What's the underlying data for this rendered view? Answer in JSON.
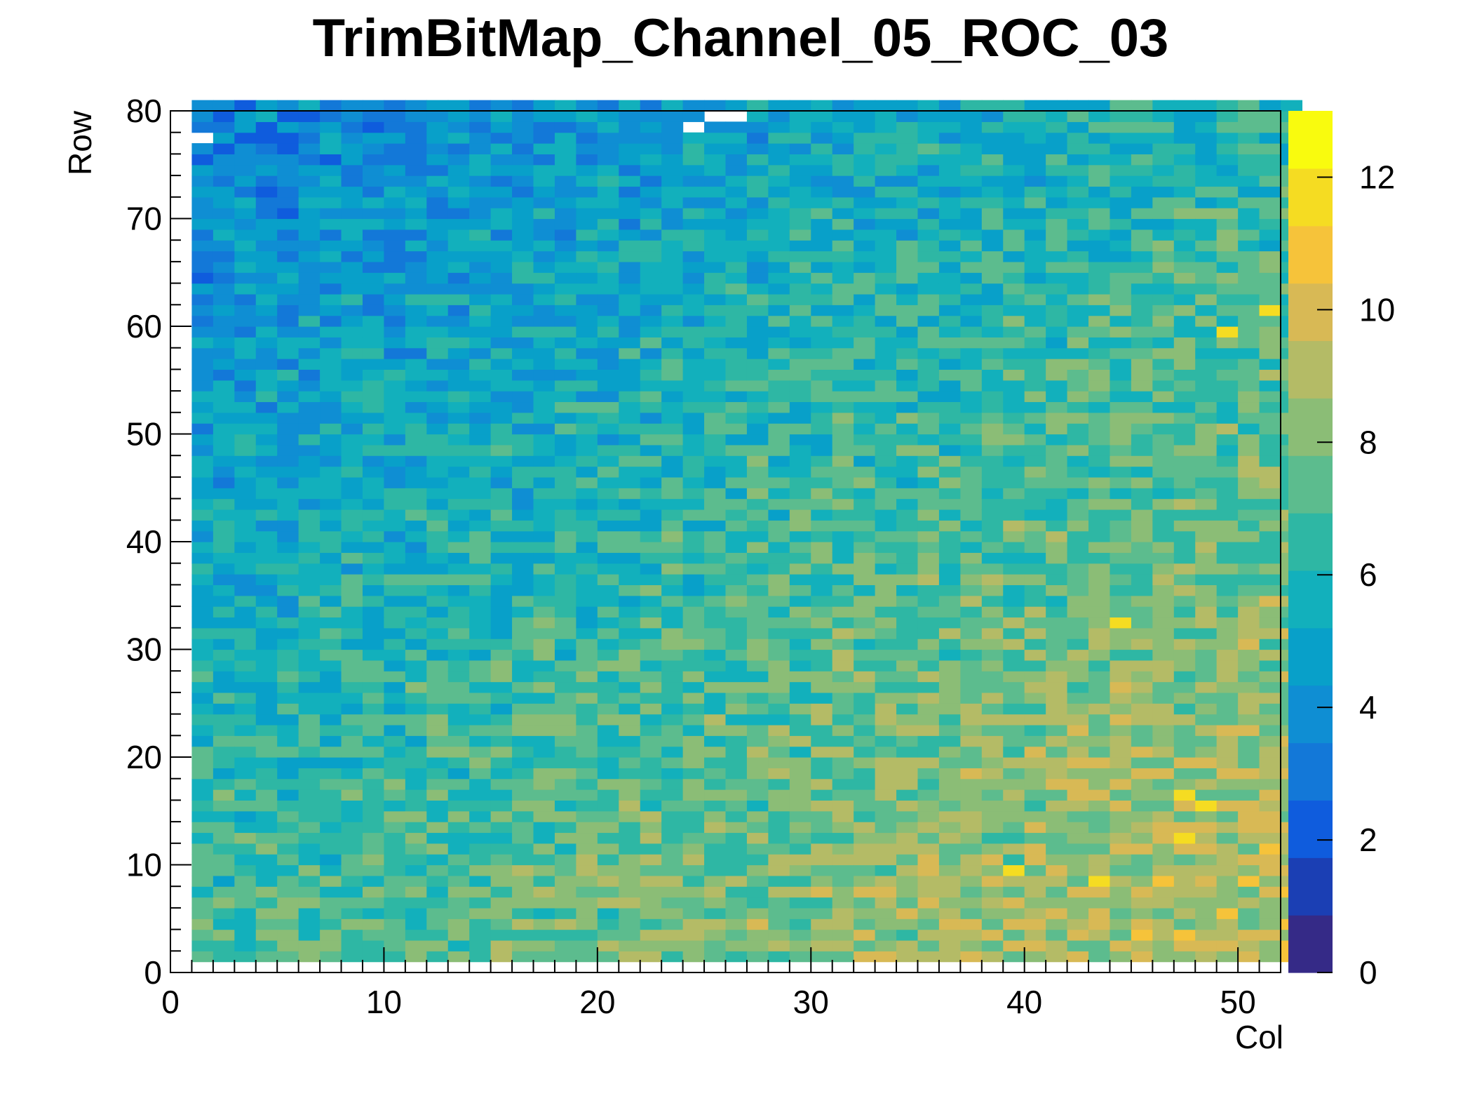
{
  "chart_data": {
    "type": "heatmap",
    "title": "TrimBitMap_Channel_05_ROC_03",
    "xlabel": "Col",
    "ylabel": "Row",
    "xlim": [
      0,
      52
    ],
    "ylim": [
      0,
      80
    ],
    "zlim": [
      0,
      13
    ],
    "x_ticks": [
      "0",
      "10",
      "20",
      "30",
      "40",
      "50"
    ],
    "y_ticks": [
      "0",
      "10",
      "20",
      "30",
      "40",
      "50",
      "60",
      "70",
      "80"
    ],
    "z_ticks": [
      "0",
      "2",
      "4",
      "6",
      "8",
      "10",
      "12"
    ],
    "cols": [
      1,
      52
    ],
    "rows": [
      1,
      80
    ],
    "empty_cells": [
      [
        1,
        77
      ],
      [
        24,
        78
      ],
      [
        25,
        79
      ],
      [
        26,
        79
      ]
    ],
    "hot_cells": [
      [
        39,
        9,
        12
      ],
      [
        43,
        8,
        12
      ],
      [
        44,
        32,
        12
      ],
      [
        47,
        16,
        12
      ],
      [
        48,
        15,
        12
      ],
      [
        47,
        12,
        12
      ],
      [
        49,
        59,
        12
      ],
      [
        51,
        61,
        12
      ]
    ],
    "trend_description_values": {
      "top_left_mean": 3.5,
      "bottom_right_mean": 9.5,
      "overall_mean": 7
    },
    "palette": [
      "#352a87",
      "#1b3fb4",
      "#0f5cdd",
      "#1378d8",
      "#0f8ed3",
      "#08a0c9",
      "#12b0bc",
      "#2eb7a4",
      "#5cbc8e",
      "#8bbd76",
      "#b4bb66",
      "#d8b955",
      "#f6c33a",
      "#f5dc22",
      "#f9fb0e"
    ]
  }
}
